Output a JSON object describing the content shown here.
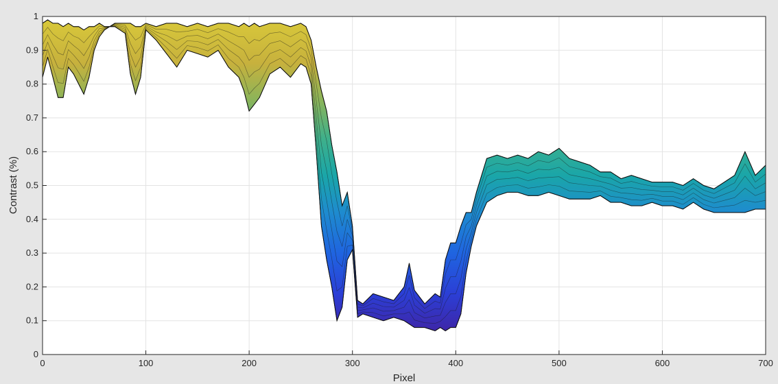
{
  "chart_data": {
    "type": "area",
    "title": "",
    "xlabel": "Pixel",
    "ylabel": "Contrast (%)",
    "xlim": [
      0,
      700
    ],
    "ylim": [
      0,
      1
    ],
    "xticks": [
      "0",
      "100",
      "200",
      "300",
      "400",
      "500",
      "600",
      "700"
    ],
    "yticks": [
      "0",
      "0.1",
      "0.2",
      "0.3",
      "0.4",
      "0.5",
      "0.6",
      "0.7",
      "0.8",
      "0.9",
      "1"
    ],
    "grid": true,
    "legend": "none",
    "colormap": "parula",
    "series": [
      {
        "x": [
          0,
          5,
          10,
          15,
          20,
          25,
          30,
          35,
          40,
          45,
          50,
          55,
          60,
          65,
          70,
          75,
          80,
          85,
          90,
          95,
          100,
          110,
          120,
          130,
          140,
          150,
          160,
          170,
          180,
          190,
          195,
          200,
          205,
          210,
          220,
          230,
          240,
          250,
          255,
          260,
          265,
          270,
          275,
          280,
          285,
          290,
          295,
          300,
          305,
          310,
          320,
          330,
          340,
          350,
          355,
          360,
          370,
          380,
          385,
          390,
          395,
          400,
          405,
          410,
          415,
          420,
          430,
          440,
          450,
          460,
          470,
          480,
          490,
          500,
          510,
          520,
          530,
          540,
          550,
          560,
          570,
          580,
          590,
          600,
          610,
          620,
          630,
          640,
          650,
          660,
          670,
          680,
          690,
          700
        ],
        "upper": [
          0.98,
          0.99,
          0.98,
          0.98,
          0.97,
          0.98,
          0.97,
          0.97,
          0.96,
          0.97,
          0.97,
          0.98,
          0.97,
          0.97,
          0.98,
          0.98,
          0.98,
          0.98,
          0.97,
          0.97,
          0.98,
          0.97,
          0.98,
          0.98,
          0.97,
          0.98,
          0.97,
          0.98,
          0.98,
          0.97,
          0.98,
          0.97,
          0.98,
          0.97,
          0.98,
          0.98,
          0.97,
          0.98,
          0.97,
          0.93,
          0.85,
          0.78,
          0.72,
          0.62,
          0.54,
          0.44,
          0.48,
          0.38,
          0.16,
          0.15,
          0.18,
          0.17,
          0.16,
          0.2,
          0.27,
          0.19,
          0.15,
          0.18,
          0.17,
          0.28,
          0.33,
          0.33,
          0.38,
          0.42,
          0.42,
          0.48,
          0.58,
          0.59,
          0.58,
          0.59,
          0.58,
          0.6,
          0.59,
          0.61,
          0.58,
          0.57,
          0.56,
          0.54,
          0.54,
          0.52,
          0.53,
          0.52,
          0.51,
          0.51,
          0.51,
          0.5,
          0.52,
          0.5,
          0.49,
          0.51,
          0.53,
          0.6,
          0.53,
          0.56
        ],
        "lower": [
          0.82,
          0.88,
          0.82,
          0.76,
          0.76,
          0.85,
          0.83,
          0.8,
          0.77,
          0.82,
          0.9,
          0.94,
          0.96,
          0.97,
          0.97,
          0.96,
          0.95,
          0.83,
          0.77,
          0.82,
          0.96,
          0.93,
          0.89,
          0.85,
          0.9,
          0.89,
          0.88,
          0.9,
          0.85,
          0.82,
          0.78,
          0.72,
          0.74,
          0.76,
          0.83,
          0.85,
          0.82,
          0.86,
          0.85,
          0.8,
          0.6,
          0.38,
          0.28,
          0.2,
          0.1,
          0.14,
          0.28,
          0.31,
          0.11,
          0.12,
          0.11,
          0.1,
          0.11,
          0.1,
          0.09,
          0.08,
          0.08,
          0.07,
          0.08,
          0.07,
          0.08,
          0.08,
          0.12,
          0.24,
          0.32,
          0.38,
          0.45,
          0.47,
          0.48,
          0.48,
          0.47,
          0.47,
          0.48,
          0.47,
          0.46,
          0.46,
          0.46,
          0.47,
          0.45,
          0.45,
          0.44,
          0.44,
          0.45,
          0.44,
          0.44,
          0.43,
          0.45,
          0.43,
          0.42,
          0.42,
          0.42,
          0.42,
          0.43,
          0.43
        ]
      }
    ]
  }
}
